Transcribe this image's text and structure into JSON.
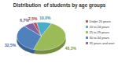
{
  "chart_data": {
    "type": "pie",
    "title": "Distribution  of students by age groups",
    "categories": [
      "Under 20 years",
      "20 to 24 years",
      "25 to 29 years",
      "30 to 34 years",
      "35 years and over"
    ],
    "values": [
      2.5,
      10.0,
      48.3,
      32.5,
      6.7
    ],
    "value_labels": [
      "2,5%",
      "10,0%",
      "48,3%",
      "32,5%",
      "6,7%"
    ],
    "colors": [
      "#c0504d",
      "#4bacc6",
      "#9bbb59",
      "#4f81bd",
      "#8064a2"
    ],
    "data_labels": true,
    "legend": "right"
  }
}
